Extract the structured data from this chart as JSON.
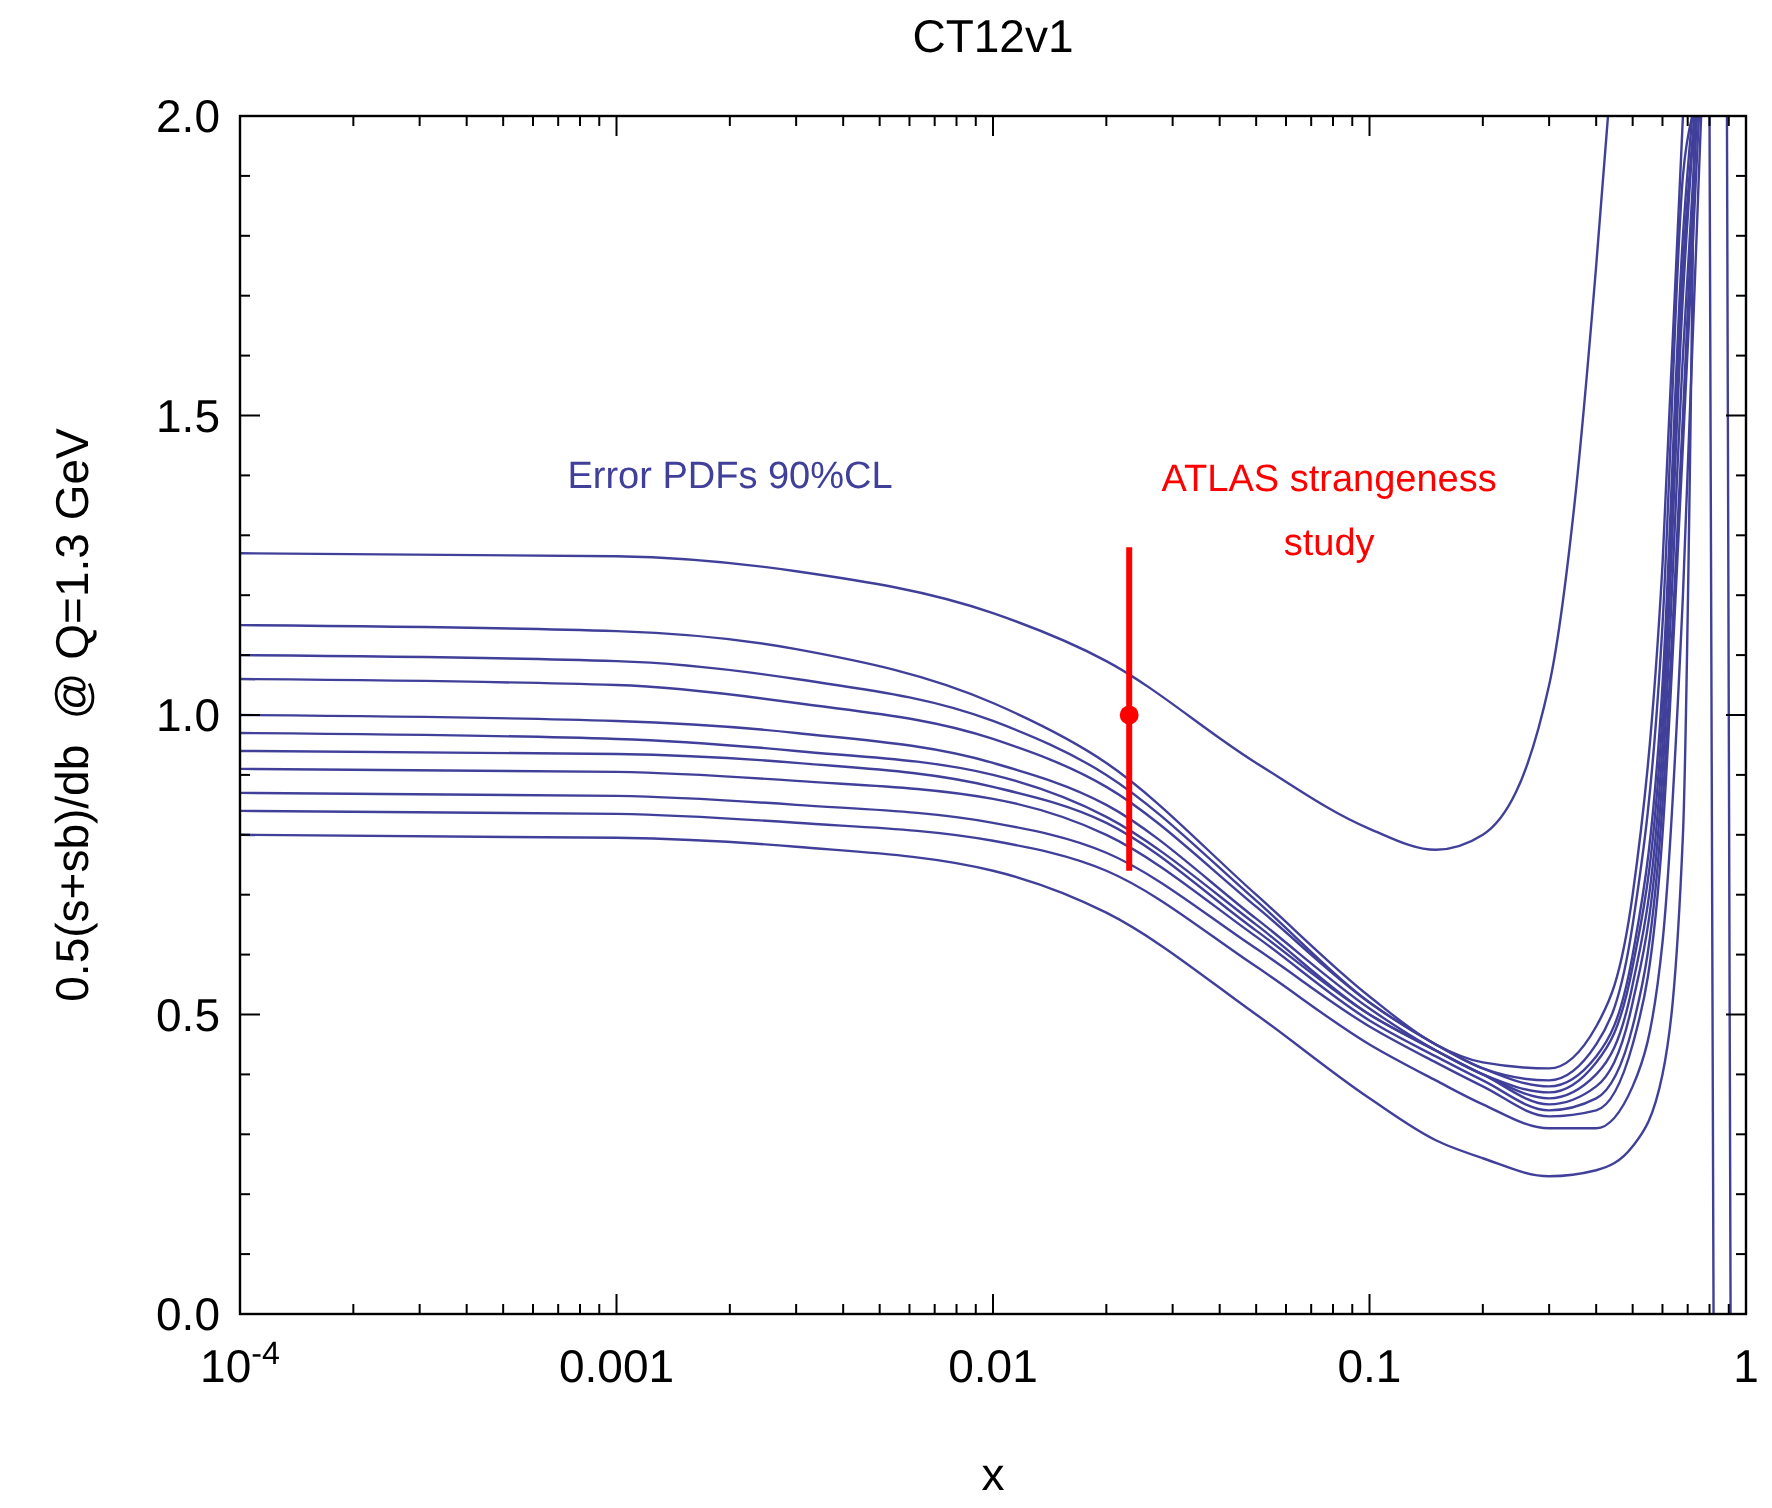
{
  "chart_data": {
    "type": "line",
    "title": "CT12v1",
    "xlabel": "x",
    "ylabel": "0.5(s+sb)/db  @ Q=1.3 GeV",
    "log": "x",
    "grid": false,
    "marker": "none",
    "line_style": "solid",
    "xlim": [
      0.0001,
      1
    ],
    "ylim": [
      0,
      2
    ],
    "xticks": [
      {
        "value": 0.0001,
        "label": "10$^{-4}$"
      },
      {
        "value": 0.0002,
        "label": null
      },
      {
        "value": 0.0003,
        "label": null
      },
      {
        "value": 0.0004,
        "label": null
      },
      {
        "value": 0.0005,
        "label": null
      },
      {
        "value": 0.0006,
        "label": null
      },
      {
        "value": 0.0007,
        "label": null
      },
      {
        "value": 0.0008,
        "label": null
      },
      {
        "value": 0.0009,
        "label": null
      },
      {
        "value": 0.001,
        "label": "0.001"
      },
      {
        "value": 0.002,
        "label": null
      },
      {
        "value": 0.003,
        "label": null
      },
      {
        "value": 0.004,
        "label": null
      },
      {
        "value": 0.005,
        "label": null
      },
      {
        "value": 0.006,
        "label": null
      },
      {
        "value": 0.007,
        "label": null
      },
      {
        "value": 0.008,
        "label": null
      },
      {
        "value": 0.009,
        "label": null
      },
      {
        "value": 0.01,
        "label": "0.01"
      },
      {
        "value": 0.02,
        "label": null
      },
      {
        "value": 0.03,
        "label": null
      },
      {
        "value": 0.04,
        "label": null
      },
      {
        "value": 0.05,
        "label": null
      },
      {
        "value": 0.06,
        "label": null
      },
      {
        "value": 0.07,
        "label": null
      },
      {
        "value": 0.08,
        "label": null
      },
      {
        "value": 0.09,
        "label": null
      },
      {
        "value": 0.1,
        "label": "0.1"
      },
      {
        "value": 0.2,
        "label": null
      },
      {
        "value": 0.3,
        "label": null
      },
      {
        "value": 0.4,
        "label": null
      },
      {
        "value": 0.5,
        "label": null
      },
      {
        "value": 0.6,
        "label": null
      },
      {
        "value": 0.7,
        "label": null
      },
      {
        "value": 0.8,
        "label": null
      },
      {
        "value": 0.9,
        "label": null
      },
      {
        "value": 1,
        "label": "1"
      }
    ],
    "yticks": [
      {
        "value": 0,
        "label": "0.0"
      },
      {
        "value": 0.1,
        "label": null
      },
      {
        "value": 0.2,
        "label": null
      },
      {
        "value": 0.3,
        "label": null
      },
      {
        "value": 0.4,
        "label": null
      },
      {
        "value": 0.5,
        "label": "0.5"
      },
      {
        "value": 0.6,
        "label": null
      },
      {
        "value": 0.7,
        "label": null
      },
      {
        "value": 0.8,
        "label": null
      },
      {
        "value": 0.9,
        "label": null
      },
      {
        "value": 1,
        "label": "1.0"
      },
      {
        "value": 1.1,
        "label": null
      },
      {
        "value": 1.2,
        "label": null
      },
      {
        "value": 1.3,
        "label": null
      },
      {
        "value": 1.4,
        "label": null
      },
      {
        "value": 1.5,
        "label": "1.5"
      },
      {
        "value": 1.6,
        "label": null
      },
      {
        "value": 1.7,
        "label": null
      },
      {
        "value": 1.8,
        "label": null
      },
      {
        "value": 1.9,
        "label": null
      },
      {
        "value": 2,
        "label": "2.0"
      }
    ],
    "annotations": [
      "Error PDFs 90%CL"
    ],
    "series": [
      {
        "color": "#40409a",
        "x": [
          0.0001,
          0.001,
          0.003,
          0.01,
          0.02,
          0.05,
          0.1,
          0.15,
          0.2,
          0.3,
          0.35,
          0.4,
          0.43
        ],
        "values": [
          1.27,
          1.265,
          1.24,
          1.17,
          1.09,
          0.92,
          0.81,
          0.775,
          0.8,
          1.05,
          1.35,
          1.75,
          2.0
        ]
      },
      {
        "color": "#40409a",
        "x": [
          0.0001,
          0.001,
          0.003,
          0.01,
          0.02,
          0.05,
          0.1,
          0.15,
          0.2,
          0.3,
          0.4,
          0.5,
          0.6,
          0.68
        ],
        "values": [
          1.15,
          1.14,
          1.11,
          1.02,
          0.92,
          0.7,
          0.53,
          0.45,
          0.42,
          0.41,
          0.48,
          0.7,
          1.25,
          2.0
        ]
      },
      {
        "color": "#40409a",
        "x": [
          0.0001,
          0.001,
          0.003,
          0.01,
          0.02,
          0.05,
          0.1,
          0.15,
          0.2,
          0.3,
          0.4,
          0.5,
          0.6,
          0.68,
          0.72
        ],
        "values": [
          1.1,
          1.09,
          1.06,
          0.99,
          0.9,
          0.69,
          0.52,
          0.45,
          0.41,
          0.39,
          0.45,
          0.65,
          1.15,
          1.9,
          2.0
        ]
      },
      {
        "color": "#40409a",
        "x": [
          0.0001,
          0.001,
          0.003,
          0.01,
          0.02,
          0.05,
          0.1,
          0.15,
          0.2,
          0.3,
          0.4,
          0.5,
          0.6,
          0.68,
          0.72
        ],
        "values": [
          1.06,
          1.05,
          1.02,
          0.96,
          0.88,
          0.68,
          0.52,
          0.45,
          0.41,
          0.38,
          0.43,
          0.6,
          1.05,
          1.8,
          2.0
        ]
      },
      {
        "color": "#40409a",
        "x": [
          0.0001,
          0.001,
          0.003,
          0.01,
          0.02,
          0.05,
          0.1,
          0.15,
          0.2,
          0.3,
          0.4,
          0.5,
          0.6,
          0.68,
          0.73
        ],
        "values": [
          1.0,
          0.99,
          0.97,
          0.92,
          0.85,
          0.66,
          0.51,
          0.44,
          0.4,
          0.37,
          0.42,
          0.58,
          1.0,
          1.75,
          2.0
        ]
      },
      {
        "color": "#40409a",
        "x": [
          0.0001,
          0.001,
          0.003,
          0.01,
          0.02,
          0.05,
          0.1,
          0.15,
          0.2,
          0.3,
          0.4,
          0.5,
          0.6,
          0.68,
          0.73
        ],
        "values": [
          0.97,
          0.96,
          0.94,
          0.9,
          0.83,
          0.65,
          0.5,
          0.44,
          0.4,
          0.36,
          0.4,
          0.55,
          0.95,
          1.7,
          2.0
        ]
      },
      {
        "color": "#40409a",
        "x": [
          0.0001,
          0.001,
          0.003,
          0.01,
          0.02,
          0.05,
          0.1,
          0.15,
          0.2,
          0.3,
          0.4,
          0.5,
          0.6,
          0.68,
          0.74
        ],
        "values": [
          0.94,
          0.935,
          0.92,
          0.88,
          0.82,
          0.64,
          0.5,
          0.44,
          0.4,
          0.35,
          0.38,
          0.52,
          0.9,
          1.6,
          2.0
        ]
      },
      {
        "color": "#40409a",
        "x": [
          0.0001,
          0.001,
          0.003,
          0.01,
          0.02,
          0.05,
          0.1,
          0.15,
          0.2,
          0.3,
          0.4,
          0.5,
          0.6,
          0.68,
          0.74
        ],
        "values": [
          0.91,
          0.905,
          0.89,
          0.86,
          0.8,
          0.63,
          0.49,
          0.43,
          0.39,
          0.34,
          0.36,
          0.48,
          0.85,
          1.5,
          2.0
        ]
      },
      {
        "color": "#40409a",
        "x": [
          0.0001,
          0.001,
          0.003,
          0.01,
          0.02,
          0.05,
          0.1,
          0.15,
          0.2,
          0.3,
          0.4,
          0.5,
          0.6,
          0.68,
          0.75
        ],
        "values": [
          0.87,
          0.865,
          0.85,
          0.82,
          0.77,
          0.61,
          0.48,
          0.42,
          0.38,
          0.33,
          0.34,
          0.45,
          0.8,
          1.45,
          2.0
        ]
      },
      {
        "color": "#40409a",
        "x": [
          0.0001,
          0.001,
          0.003,
          0.01,
          0.02,
          0.05,
          0.1,
          0.15,
          0.2,
          0.3,
          0.4,
          0.5,
          0.6,
          0.68,
          0.76
        ],
        "values": [
          0.84,
          0.835,
          0.82,
          0.79,
          0.74,
          0.58,
          0.45,
          0.39,
          0.35,
          0.31,
          0.31,
          0.38,
          0.62,
          1.2,
          2.0
        ]
      },
      {
        "color": "#40409a",
        "x": [
          0.0001,
          0.001,
          0.003,
          0.01,
          0.02,
          0.05,
          0.1,
          0.15,
          0.2,
          0.3,
          0.4,
          0.5,
          0.6,
          0.68,
          0.73
        ],
        "values": [
          0.8,
          0.795,
          0.78,
          0.74,
          0.67,
          0.5,
          0.36,
          0.29,
          0.26,
          0.23,
          0.24,
          0.28,
          0.4,
          0.8,
          2.0
        ]
      },
      {
        "color": "#40409a",
        "x": [
          0.8,
          0.81,
          0.82
        ],
        "values": [
          2.0,
          1.0,
          0.0
        ]
      },
      {
        "color": "#40409a",
        "x": [
          0.89,
          0.9,
          0.91
        ],
        "values": [
          2.0,
          1.0,
          0.0
        ]
      },
      {
        "type": "scatter",
        "name": "ATLAS strangeness study",
        "color": "#ff0000",
        "marker": "circle",
        "x": [
          0.023
        ],
        "values": [
          1.0
        ],
        "errors": [
          [
            0.74,
            1.28
          ]
        ]
      }
    ]
  }
}
